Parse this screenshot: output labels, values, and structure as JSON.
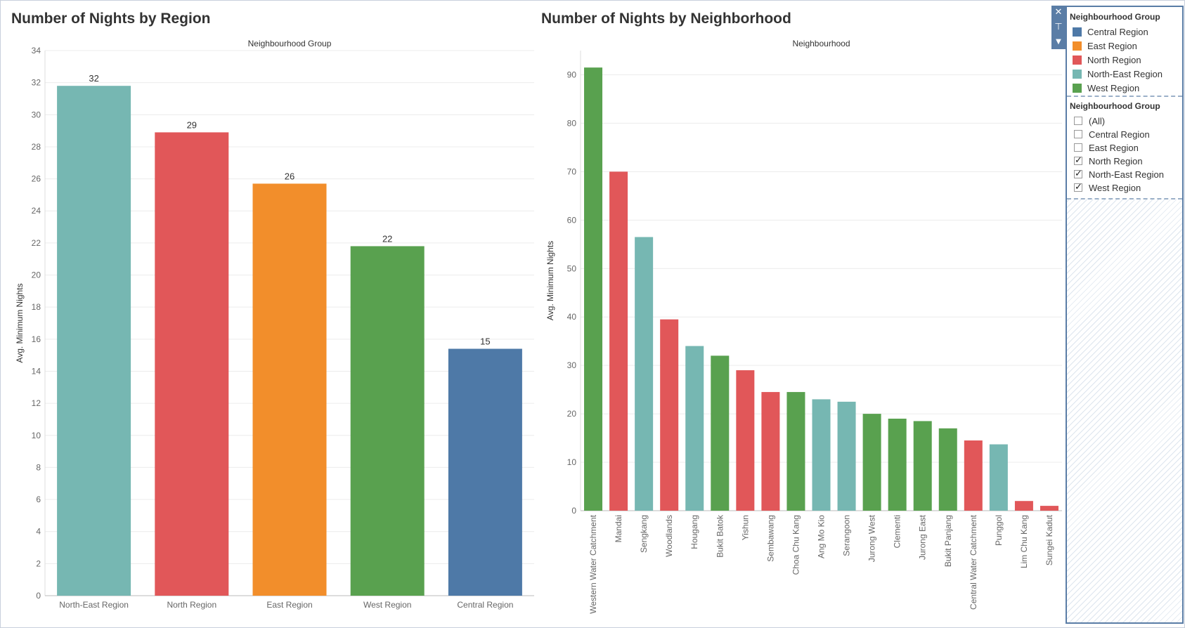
{
  "sheets": {
    "left_title": "Number of Nights by Region",
    "right_title": "Number of Nights by Neighborhood"
  },
  "chart_data": [
    {
      "type": "bar",
      "title": "Number of Nights by Region",
      "column_header": "Neighbourhood Group",
      "ylabel": "Avg. Minimum Nights",
      "ylim": [
        0,
        34
      ],
      "yticks": [
        0,
        2,
        4,
        6,
        8,
        10,
        12,
        14,
        16,
        18,
        20,
        22,
        24,
        26,
        28,
        30,
        32,
        34
      ],
      "categories": [
        "North-East Region",
        "North Region",
        "East Region",
        "West Region",
        "Central Region"
      ],
      "values": [
        31.8,
        28.9,
        25.7,
        21.8,
        15.4
      ],
      "data_labels": [
        "32",
        "29",
        "26",
        "22",
        "15"
      ],
      "colors": [
        "#76b7b2",
        "#e15759",
        "#f28e2b",
        "#59a14f",
        "#4e79a7"
      ],
      "grid": true,
      "legend": "none"
    },
    {
      "type": "bar",
      "title": "Number of Nights by Neighborhood",
      "column_header": "Neighbourhood",
      "ylabel": "Avg. Minimum Nights",
      "ylim": [
        0,
        95
      ],
      "yticks": [
        0,
        10,
        20,
        30,
        40,
        50,
        60,
        70,
        80,
        90
      ],
      "categories": [
        "Western Water Catchment",
        "Mandai",
        "Sengkang",
        "Woodlands",
        "Hougang",
        "Bukit Batok",
        "Yishun",
        "Sembawang",
        "Choa Chu Kang",
        "Ang Mo Kio",
        "Serangoon",
        "Jurong West",
        "Clementi",
        "Jurong East",
        "Bukit Panjang",
        "Central Water Catchment",
        "Punggol",
        "Lim Chu Kang",
        "Sungei Kadut"
      ],
      "values": [
        91.5,
        70,
        56.5,
        39.5,
        34,
        32,
        29,
        24.5,
        24.5,
        23,
        22.5,
        20,
        19,
        18.5,
        17,
        14.5,
        13.7,
        2,
        1
      ],
      "regions": [
        "West Region",
        "North Region",
        "North-East Region",
        "North Region",
        "North-East Region",
        "West Region",
        "North Region",
        "North Region",
        "West Region",
        "North-East Region",
        "North-East Region",
        "West Region",
        "West Region",
        "West Region",
        "West Region",
        "North Region",
        "North-East Region",
        "North Region",
        "North Region"
      ],
      "grid": true,
      "legend": "right"
    }
  ],
  "legend": {
    "title": "Neighbourhood Group",
    "items": [
      {
        "label": "Central Region",
        "color": "#4e79a7"
      },
      {
        "label": "East Region",
        "color": "#f28e2b"
      },
      {
        "label": "North Region",
        "color": "#e15759"
      },
      {
        "label": "North-East Region",
        "color": "#76b7b2"
      },
      {
        "label": "West Region",
        "color": "#59a14f"
      }
    ]
  },
  "filter": {
    "title": "Neighbourhood Group",
    "items": [
      {
        "label": "(All)",
        "checked": false
      },
      {
        "label": "Central Region",
        "checked": false
      },
      {
        "label": "East Region",
        "checked": false
      },
      {
        "label": "North Region",
        "checked": true
      },
      {
        "label": "North-East Region",
        "checked": true
      },
      {
        "label": "West Region",
        "checked": true
      }
    ]
  },
  "toolbar": {
    "close_icon": "close-icon",
    "pin_icon": "pin-icon",
    "menu_icon": "dropdown-arrow-icon"
  }
}
